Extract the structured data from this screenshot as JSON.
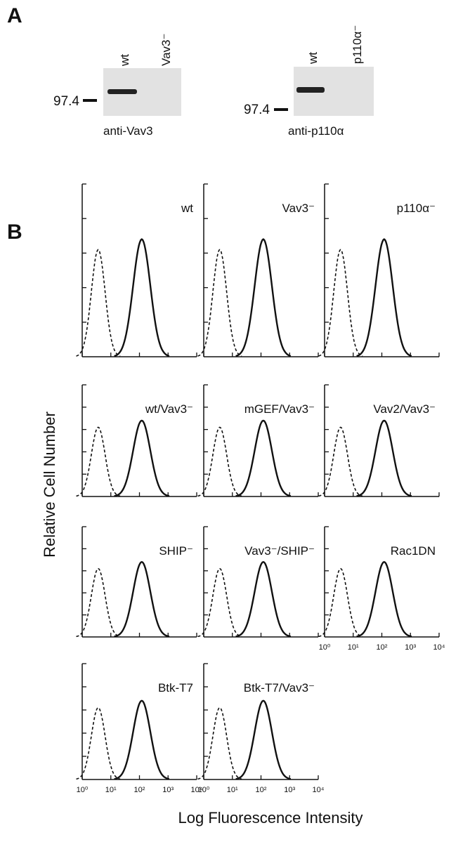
{
  "panel_a": {
    "label": "A",
    "blots": [
      {
        "lanes": [
          "wt",
          "Vav3⁻"
        ],
        "marker": "97.4",
        "antibody": "anti-Vav3"
      },
      {
        "lanes": [
          "wt",
          "p110α⁻"
        ],
        "marker": "97.4",
        "antibody": "anti-p110α"
      }
    ]
  },
  "panel_b": {
    "label": "B",
    "y_axis_label": "Relative Cell Number",
    "x_axis_label": "Log Fluorescence Intensity",
    "x_tick_labels": [
      "10⁰",
      "10¹",
      "10²",
      "10³",
      "10⁴"
    ],
    "histograms": [
      {
        "label": "wt"
      },
      {
        "label": "Vav3⁻"
      },
      {
        "label": "p110α⁻"
      },
      {
        "label": "wt/Vav3⁻"
      },
      {
        "label": "mGEF/Vav3⁻"
      },
      {
        "label": "Vav2/Vav3⁻"
      },
      {
        "label": "SHIP⁻"
      },
      {
        "label": "Vav3⁻/SHIP⁻"
      },
      {
        "label": "Rac1DN"
      },
      {
        "label": "Btk-T7"
      },
      {
        "label": "Btk-T7/Vav3⁻"
      }
    ]
  }
}
